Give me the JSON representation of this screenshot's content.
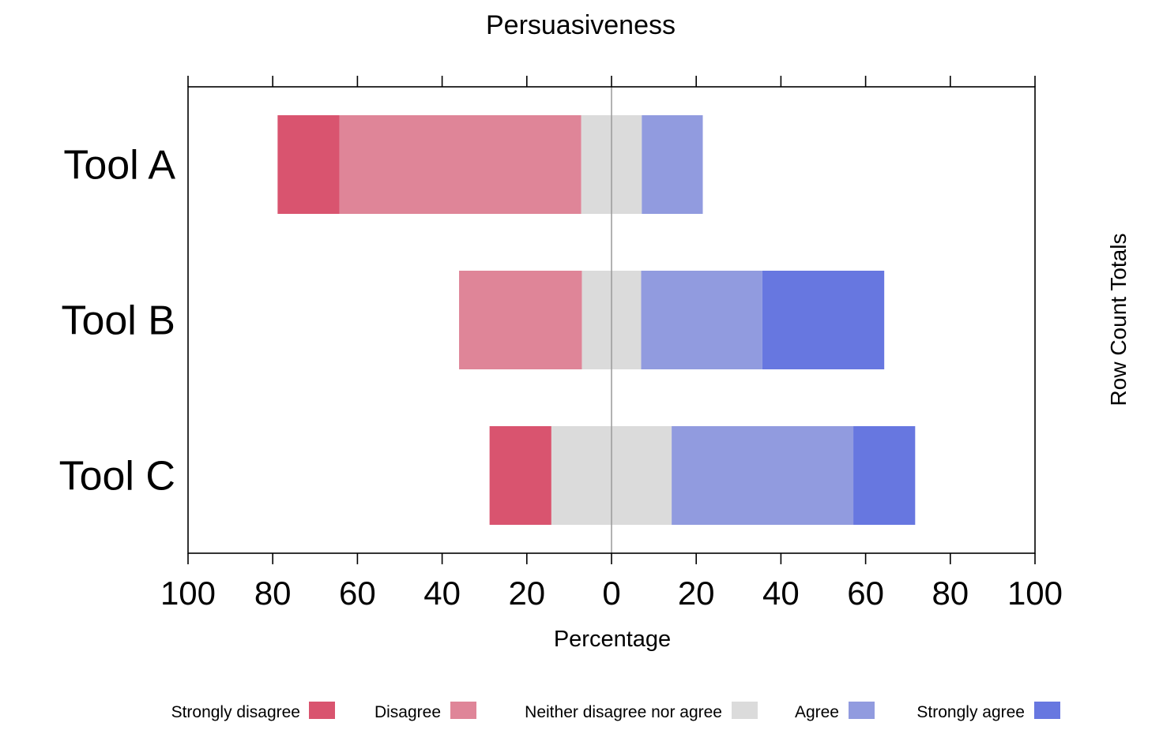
{
  "chart_data": {
    "type": "bar",
    "subtype": "diverging-stacked-likert",
    "orientation": "horizontal",
    "title": "Persuasiveness",
    "xlabel": "Percentage",
    "right_label": "Row Count Totals",
    "xlim": [
      -100,
      100
    ],
    "x_ticks": [
      -100,
      -80,
      -60,
      -40,
      -20,
      0,
      20,
      40,
      60,
      80,
      100
    ],
    "x_tick_labels": [
      "100",
      "80",
      "60",
      "40",
      "20",
      "0",
      "20",
      "40",
      "60",
      "80",
      "100"
    ],
    "categories": [
      "Tool A",
      "Tool B",
      "Tool C"
    ],
    "series": [
      {
        "name": "Strongly disagree",
        "color": "#D9546F",
        "values": [
          14.6,
          0,
          14.6
        ]
      },
      {
        "name": "Disagree",
        "color": "#DF8598",
        "values": [
          57.1,
          29.0,
          0
        ]
      },
      {
        "name": "Neither disagree nor agree",
        "color": "#DBDBDB",
        "values": [
          14.3,
          14.0,
          28.4
        ]
      },
      {
        "name": "Agree",
        "color": "#919BDF",
        "values": [
          14.4,
          28.6,
          42.9
        ]
      },
      {
        "name": "Strongly agree",
        "color": "#6777E0",
        "values": [
          0,
          28.8,
          14.6
        ]
      }
    ],
    "neutral_series": "Neither disagree nor agree",
    "legend_position": "bottom",
    "grid": false,
    "zero_line_color": "#999999"
  }
}
